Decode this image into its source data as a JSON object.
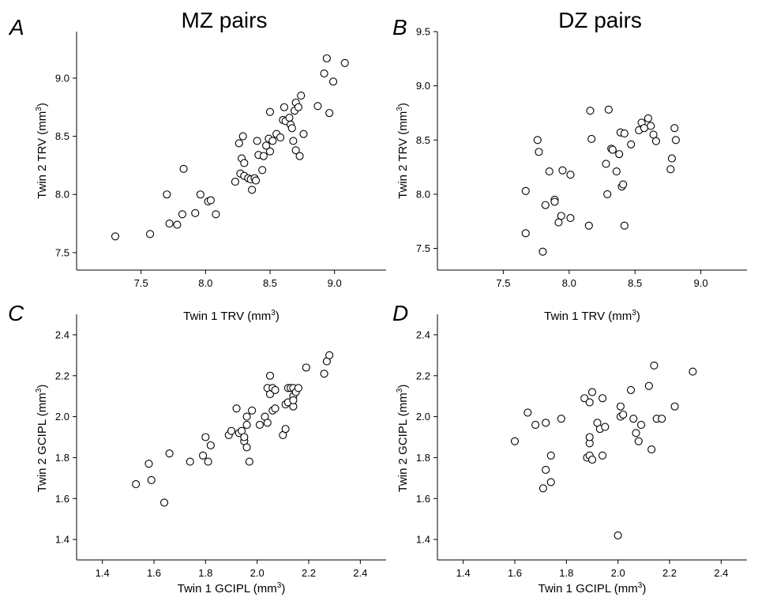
{
  "figure": {
    "column_titles": [
      "MZ pairs",
      "DZ pairs"
    ],
    "marker_color": "#000000",
    "marker_fill": "#ffffff"
  },
  "chart_data": [
    {
      "panel": "A",
      "type": "scatter",
      "title": "MZ pairs",
      "xlabel": "Twin 1 TRV (mm",
      "xlabel_sup": "3",
      "ylabel": "Twin 2 TRV (mm",
      "ylabel_sup": "3",
      "xlim": [
        7.0,
        9.4
      ],
      "ylim": [
        7.35,
        9.4
      ],
      "xticks": [
        7.5,
        8.0,
        8.5,
        9.0
      ],
      "yticks": [
        7.5,
        8.0,
        8.5,
        9.0
      ],
      "tick_decimals": 1,
      "x": [
        7.3,
        7.57,
        7.7,
        7.72,
        7.78,
        7.82,
        7.83,
        7.92,
        7.96,
        8.02,
        8.04,
        8.08,
        8.23,
        8.26,
        8.27,
        8.28,
        8.29,
        8.3,
        8.3,
        8.33,
        8.35,
        8.36,
        8.38,
        8.39,
        8.4,
        8.41,
        8.44,
        8.45,
        8.47,
        8.49,
        8.5,
        8.5,
        8.52,
        8.55,
        8.58,
        8.6,
        8.61,
        8.62,
        8.65,
        8.66,
        8.67,
        8.68,
        8.69,
        8.7,
        8.7,
        8.72,
        8.73,
        8.74,
        8.76,
        8.87,
        8.92,
        8.94,
        8.96,
        8.99,
        9.08
      ],
      "y": [
        7.64,
        7.66,
        8.0,
        7.75,
        7.74,
        7.83,
        8.22,
        7.84,
        8.0,
        7.94,
        7.95,
        7.83,
        8.11,
        8.44,
        8.18,
        8.31,
        8.5,
        8.27,
        8.16,
        8.14,
        8.13,
        8.04,
        8.14,
        8.12,
        8.46,
        8.34,
        8.21,
        8.33,
        8.42,
        8.48,
        8.37,
        8.71,
        8.46,
        8.52,
        8.49,
        8.64,
        8.75,
        8.63,
        8.66,
        8.6,
        8.57,
        8.46,
        8.72,
        8.38,
        8.79,
        8.75,
        8.33,
        8.85,
        8.52,
        8.76,
        9.04,
        9.17,
        8.7,
        8.97,
        9.13
      ]
    },
    {
      "panel": "B",
      "type": "scatter",
      "title": "DZ pairs",
      "xlabel": "Twin 1 TRV (mm",
      "xlabel_sup": "3",
      "ylabel": "Twin 2 TRV (mm",
      "ylabel_sup": "3",
      "xlim": [
        7.0,
        9.35
      ],
      "ylim": [
        7.3,
        9.5
      ],
      "xticks": [
        7.5,
        8.0,
        8.5,
        9.0
      ],
      "yticks": [
        7.5,
        8.0,
        8.5,
        9.0,
        9.5
      ],
      "tick_decimals": 1,
      "x": [
        7.67,
        7.67,
        7.76,
        7.77,
        7.8,
        7.82,
        7.85,
        7.89,
        7.89,
        7.92,
        7.94,
        7.95,
        8.01,
        8.01,
        8.15,
        8.16,
        8.17,
        8.28,
        8.29,
        8.3,
        8.32,
        8.33,
        8.36,
        8.38,
        8.39,
        8.4,
        8.41,
        8.42,
        8.42,
        8.47,
        8.53,
        8.55,
        8.57,
        8.6,
        8.62,
        8.64,
        8.66,
        8.77,
        8.78,
        8.8,
        8.81
      ],
      "y": [
        8.03,
        7.64,
        8.5,
        8.39,
        7.47,
        7.9,
        8.21,
        7.95,
        7.93,
        7.74,
        7.8,
        8.22,
        8.18,
        7.78,
        7.71,
        8.77,
        8.51,
        8.28,
        8.0,
        8.78,
        8.42,
        8.41,
        8.21,
        8.37,
        8.57,
        8.07,
        8.09,
        7.71,
        8.56,
        8.46,
        8.59,
        8.66,
        8.61,
        8.7,
        8.63,
        8.55,
        8.49,
        8.23,
        8.33,
        8.61,
        8.5
      ]
    },
    {
      "panel": "C",
      "type": "scatter",
      "title": "",
      "xlabel": "Twin 1 GCIPL (mm",
      "xlabel_sup": "3",
      "ylabel": "Twin 2 GCIPL (mm",
      "ylabel_sup": "3",
      "xlim": [
        1.3,
        2.5
      ],
      "ylim": [
        1.3,
        2.5
      ],
      "xticks": [
        1.4,
        1.6,
        1.8,
        2.0,
        2.2,
        2.4
      ],
      "yticks": [
        1.4,
        1.6,
        1.8,
        2.0,
        2.2,
        2.4
      ],
      "tick_decimals": 1,
      "x": [
        1.53,
        1.58,
        1.59,
        1.64,
        1.66,
        1.74,
        1.79,
        1.8,
        1.81,
        1.82,
        1.89,
        1.9,
        1.92,
        1.93,
        1.94,
        1.95,
        1.95,
        1.96,
        1.96,
        1.96,
        1.97,
        1.98,
        2.01,
        2.03,
        2.04,
        2.04,
        2.05,
        2.05,
        2.06,
        2.06,
        2.07,
        2.07,
        2.1,
        2.11,
        2.11,
        2.12,
        2.12,
        2.13,
        2.14,
        2.14,
        2.14,
        2.14,
        2.15,
        2.16,
        2.19,
        2.26,
        2.27,
        2.28
      ],
      "y": [
        1.67,
        1.77,
        1.69,
        1.58,
        1.82,
        1.78,
        1.81,
        1.9,
        1.78,
        1.86,
        1.91,
        1.93,
        2.04,
        1.92,
        1.93,
        1.88,
        1.9,
        2.0,
        1.85,
        1.96,
        1.78,
        2.03,
        1.96,
        2.0,
        2.14,
        1.97,
        2.11,
        2.2,
        2.03,
        2.14,
        2.04,
        2.13,
        1.91,
        1.94,
        2.06,
        2.07,
        2.14,
        2.14,
        2.05,
        2.1,
        2.08,
        2.14,
        2.12,
        2.14,
        2.24,
        2.21,
        2.27,
        2.3
      ]
    },
    {
      "panel": "D",
      "type": "scatter",
      "title": "",
      "xlabel": "Twin 1 GCIPL (mm",
      "xlabel_sup": "3",
      "ylabel": "Twin 2 GCIPL (mm",
      "ylabel_sup": "3",
      "xlim": [
        1.3,
        2.5
      ],
      "ylim": [
        1.3,
        2.5
      ],
      "xticks": [
        1.4,
        1.6,
        1.8,
        2.0,
        2.2,
        2.4
      ],
      "yticks": [
        1.4,
        1.6,
        1.8,
        2.0,
        2.2,
        2.4
      ],
      "tick_decimals": 1,
      "x": [
        1.6,
        1.65,
        1.68,
        1.71,
        1.72,
        1.72,
        1.74,
        1.74,
        1.78,
        1.87,
        1.88,
        1.89,
        1.89,
        1.89,
        1.89,
        1.9,
        1.9,
        1.92,
        1.93,
        1.94,
        1.94,
        1.95,
        2.0,
        2.01,
        2.01,
        2.02,
        2.05,
        2.06,
        2.07,
        2.08,
        2.09,
        2.12,
        2.13,
        2.14,
        2.15,
        2.17,
        2.22,
        2.29
      ],
      "y": [
        1.88,
        2.02,
        1.96,
        1.65,
        1.97,
        1.74,
        1.68,
        1.81,
        1.99,
        2.09,
        1.8,
        1.81,
        1.87,
        1.9,
        2.07,
        2.12,
        1.79,
        1.97,
        1.94,
        2.09,
        1.81,
        1.95,
        1.42,
        2.05,
        2.0,
        2.01,
        2.13,
        1.99,
        1.92,
        1.88,
        1.96,
        2.15,
        1.84,
        2.25,
        1.99,
        1.99,
        2.05,
        2.22
      ]
    }
  ]
}
